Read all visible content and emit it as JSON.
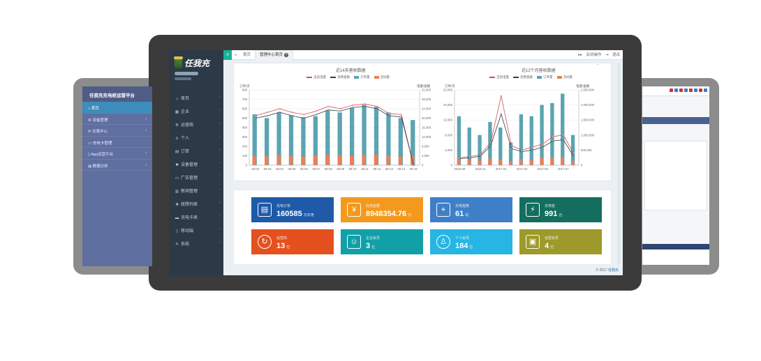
{
  "left_screen": {
    "title": "任我充充电桩运营平台",
    "items": [
      {
        "label": "首页",
        "icon": "home-icon",
        "active": true
      },
      {
        "label": "设备管理",
        "icon": "device-icon"
      },
      {
        "label": "交易中心",
        "icon": "transaction-icon"
      },
      {
        "label": "充电卡管理",
        "icon": "card-icon"
      },
      {
        "label": "App运营平台",
        "icon": "mobile-icon"
      },
      {
        "label": "数据分析",
        "icon": "report-icon"
      }
    ]
  },
  "sidebar": {
    "brand": "任我充",
    "items": [
      {
        "label": "首页",
        "icon": "home-icon"
      },
      {
        "label": "企业",
        "icon": "company-icon"
      },
      {
        "label": "运营商",
        "icon": "operator-icon"
      },
      {
        "label": "个人",
        "icon": "user-icon"
      },
      {
        "label": "订单",
        "icon": "order-icon"
      },
      {
        "label": "设备管理",
        "icon": "gear-icon"
      },
      {
        "label": "广告管理",
        "icon": "ad-icon"
      },
      {
        "label": "新闻管理",
        "icon": "news-icon"
      },
      {
        "label": "故障列表",
        "icon": "wrench-icon"
      },
      {
        "label": "充电卡表",
        "icon": "card-icon"
      },
      {
        "label": "移动端",
        "icon": "mobile-icon"
      },
      {
        "label": "系统",
        "icon": "system-icon"
      }
    ]
  },
  "tabs": {
    "home": "首页",
    "active": "管理中心首页",
    "close_ops": "关闭操作",
    "logout": "退出"
  },
  "legend": {
    "s1": "当前电量",
    "s2": "消费金额",
    "s3": "订单量",
    "s4": "活动量"
  },
  "chart_data": [
    {
      "type": "bar",
      "title": "近14天营收数据",
      "ylabel": "订单/次",
      "y2label": "电量/金额",
      "categories": [
        "08-02",
        "08-03",
        "08-04",
        "08-05",
        "08-06",
        "08-07",
        "08-08",
        "08-09",
        "08-10",
        "08-11",
        "08-12",
        "08-13",
        "08-14",
        "08-15"
      ],
      "ylim": [
        0,
        800
      ],
      "y2lim": [
        0,
        32000
      ],
      "yticks": [
        "800",
        "700",
        "600",
        "500",
        "400",
        "300",
        "200",
        "100",
        "0"
      ],
      "y2ticks": [
        "32,000",
        "28,000",
        "24,000",
        "20,000",
        "16,000",
        "12,000",
        "8,000",
        "4,000",
        "0"
      ],
      "series": [
        {
          "name": "订单量",
          "axis": "left",
          "kind": "bar",
          "values": [
            540,
            500,
            560,
            530,
            510,
            520,
            580,
            560,
            610,
            640,
            620,
            560,
            500,
            480
          ]
        },
        {
          "name": "活动量",
          "axis": "left",
          "kind": "bar",
          "values": [
            100,
            100,
            110,
            100,
            95,
            100,
            110,
            105,
            100,
            110,
            115,
            100,
            95,
            100
          ]
        },
        {
          "name": "当前电量",
          "axis": "right",
          "kind": "line",
          "values": [
            21000,
            22500,
            24000,
            22500,
            21500,
            23000,
            25000,
            24000,
            25500,
            26000,
            25000,
            22000,
            21500,
            0
          ]
        },
        {
          "name": "消费金额",
          "axis": "right",
          "kind": "line",
          "values": [
            20000,
            21000,
            22500,
            21000,
            20000,
            21500,
            23500,
            23000,
            24500,
            25000,
            24000,
            21000,
            20500,
            0
          ]
        }
      ]
    },
    {
      "type": "bar",
      "title": "近12个月营收数据",
      "ylabel": "订单/次",
      "y2label": "电量/金额",
      "categories": [
        "2016-09",
        "2016-10",
        "2016-11",
        "2016-12",
        "2017-01",
        "2017-02",
        "2017-03",
        "2017-04",
        "2017-05",
        "2017-06",
        "2017-07",
        "2017-08"
      ],
      "xticks": [
        "2016-09",
        "2016-11",
        "2017-01",
        "2017-03",
        "2017-05",
        "2017-07"
      ],
      "ylim": [
        0,
        20000
      ],
      "y2lim": [
        0,
        2500000
      ],
      "yticks": [
        "20,000",
        "16,000",
        "12,000",
        "8,000",
        "4,000",
        "0"
      ],
      "y2ticks": [
        "2,500,000",
        "2,000,000",
        "1,500,000",
        "1,000,000",
        "500,000",
        "0"
      ],
      "series": [
        {
          "name": "订单量",
          "axis": "left",
          "kind": "bar",
          "values": [
            13000,
            10000,
            8000,
            11500,
            10000,
            6000,
            13500,
            13000,
            16000,
            16500,
            19000,
            8000
          ]
        },
        {
          "name": "活动量",
          "axis": "left",
          "kind": "bar",
          "values": [
            2000,
            1500,
            1200,
            1800,
            1600,
            900,
            1700,
            1600,
            1900,
            2000,
            2100,
            1200
          ]
        },
        {
          "name": "当前电量",
          "axis": "right",
          "kind": "line",
          "values": [
            250000,
            280000,
            350000,
            750000,
            2300000,
            650000,
            500000,
            600000,
            700000,
            950000,
            1000000,
            400000
          ]
        },
        {
          "name": "消费金额",
          "axis": "right",
          "kind": "line",
          "values": [
            220000,
            240000,
            300000,
            650000,
            1700000,
            550000,
            450000,
            500000,
            600000,
            800000,
            850000,
            300000
          ]
        }
      ]
    }
  ],
  "stats": [
    {
      "label": "充电订单",
      "value": "160585",
      "unit": "次充电",
      "color": "#1e5aa8",
      "icon": "document-icon"
    },
    {
      "label": "充电金额",
      "value": "8948354.76",
      "unit": "元",
      "color": "#f39a1e",
      "icon": "money-bag-icon"
    },
    {
      "label": "充电桩数",
      "value": "61",
      "unit": "站",
      "color": "#3f7fc7",
      "icon": "location-pin-icon"
    },
    {
      "label": "充电桩",
      "value": "991",
      "unit": "台",
      "color": "#146e5f",
      "icon": "charger-icon"
    },
    {
      "label": "运营商",
      "value": "13",
      "unit": "位",
      "color": "#e4511e",
      "icon": "operator-icon"
    },
    {
      "label": "企业会员",
      "value": "3",
      "unit": "位",
      "color": "#12a0a8",
      "icon": "group-icon"
    },
    {
      "label": "个人会员",
      "value": "184",
      "unit": "位",
      "color": "#27b5e3",
      "icon": "person-icon"
    },
    {
      "label": "运营会员",
      "value": "4",
      "unit": "位",
      "color": "#9d9a2b",
      "icon": "bus-icon"
    }
  ],
  "footer": {
    "copyright": "© 2017",
    "brand": "任我充"
  },
  "colors": {
    "bar1": "#5ba4b1",
    "bar2": "#e8805c",
    "line1": "#d94a4a",
    "line2": "#2f3d4d"
  }
}
